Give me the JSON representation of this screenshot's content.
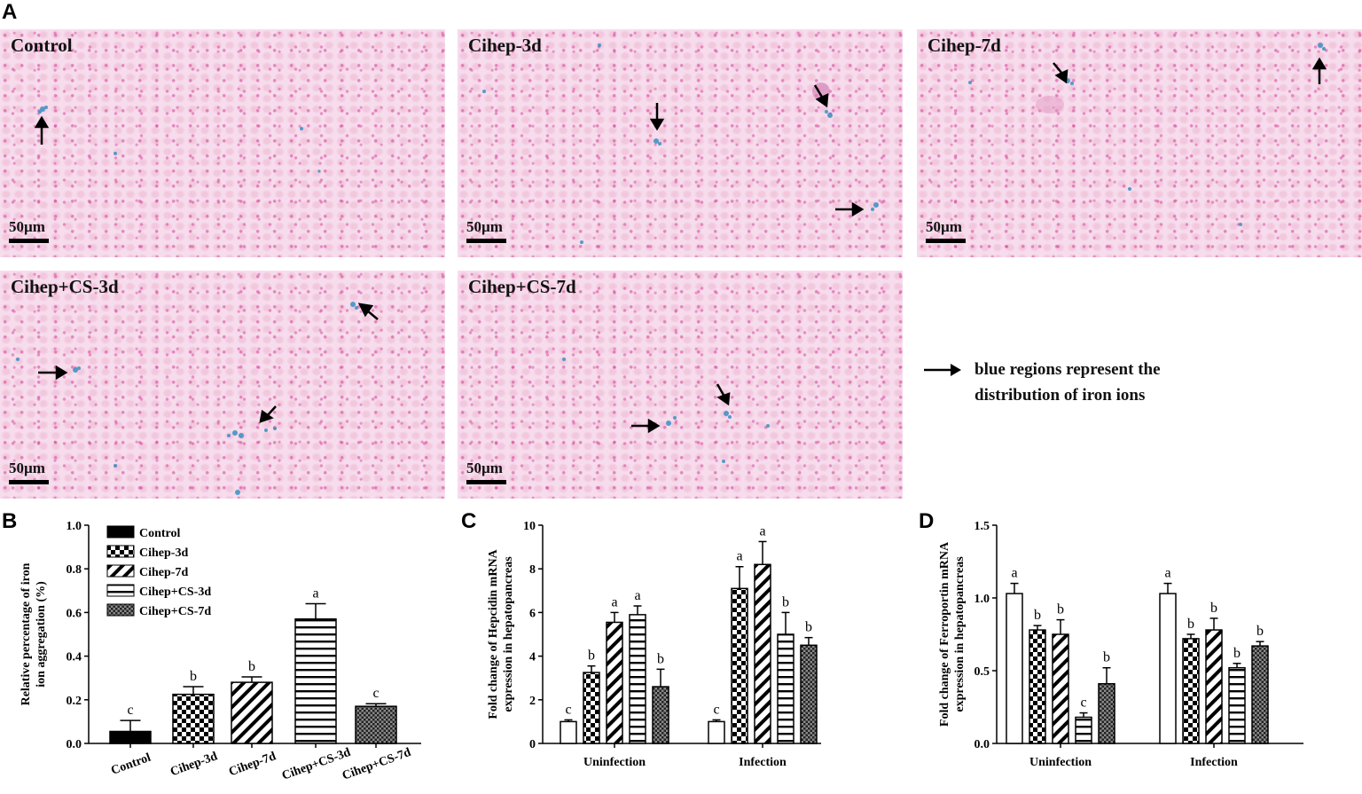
{
  "panel_letters": {
    "a": "A",
    "b": "B",
    "c": "C",
    "d": "D"
  },
  "micrographs": [
    {
      "label": "Control",
      "scale": "50µm",
      "arrows": [
        {
          "dir": "up"
        }
      ]
    },
    {
      "label": "Cihep-3d",
      "scale": "50µm",
      "arrows": [
        {
          "dir": "down"
        },
        {
          "dir": "down-right"
        },
        {
          "dir": "right"
        }
      ]
    },
    {
      "label": "Cihep-7d",
      "scale": "50µm",
      "arrows": [
        {
          "dir": "down-right"
        },
        {
          "dir": "up"
        }
      ]
    },
    {
      "label": "Cihep+CS-3d",
      "scale": "50µm",
      "arrows": [
        {
          "dir": "up-left"
        },
        {
          "dir": "right"
        },
        {
          "dir": "down-left"
        }
      ]
    },
    {
      "label": "Cihep+CS-7d",
      "scale": "50µm",
      "arrows": [
        {
          "dir": "down-right"
        },
        {
          "dir": "right"
        }
      ]
    }
  ],
  "note": {
    "text_line1": "blue regions represent the",
    "text_line2": "distribution of iron ions"
  },
  "colors": {
    "bar_fill": "#ffffff",
    "bar_stroke": "#000000",
    "iron_blue": "#3a8fc4",
    "tissue_pink": "#f6dcec"
  },
  "chart_data": [
    {
      "id": "B",
      "type": "bar",
      "categories": [
        "Control",
        "Cihep-3d",
        "Cihep-7d",
        "Cihep+CS-3d",
        "Cihep+CS-7d"
      ],
      "values": [
        0.055,
        0.225,
        0.28,
        0.57,
        0.17
      ],
      "errors": [
        0.05,
        0.035,
        0.025,
        0.07,
        0.012
      ],
      "letters": [
        "c",
        "b",
        "b",
        "a",
        "c"
      ],
      "patterns": [
        "solid",
        "check",
        "diag",
        "hlines",
        "dense"
      ],
      "legend": [
        "Control",
        "Cihep-3d",
        "Cihep-7d",
        "Cihep+CS-3d",
        "Cihep+CS-7d"
      ],
      "legend_position": "top-left",
      "ylabel_line1": "Relative percentage of iron",
      "ylabel_line2": "ion aggregation (%)",
      "ylim": [
        0,
        1.0
      ],
      "yticks": [
        "0.0",
        "0.2",
        "0.4",
        "0.6",
        "0.8",
        "1.0"
      ]
    },
    {
      "id": "C",
      "type": "bar",
      "groups": [
        "Uninfection",
        "Infection"
      ],
      "series": [
        {
          "name": "Control",
          "pattern": "open",
          "values": [
            1.0,
            1.0
          ],
          "errors": [
            0.08,
            0.08
          ],
          "letters": [
            "c",
            "c"
          ]
        },
        {
          "name": "Cihep-3d",
          "pattern": "check",
          "values": [
            3.25,
            7.1
          ],
          "errors": [
            0.3,
            1.0
          ],
          "letters": [
            "b",
            "a"
          ]
        },
        {
          "name": "Cihep-7d",
          "pattern": "diag",
          "values": [
            5.55,
            8.2
          ],
          "errors": [
            0.45,
            1.05
          ],
          "letters": [
            "a",
            "a"
          ]
        },
        {
          "name": "Cihep+CS-3d",
          "pattern": "hlines",
          "values": [
            5.9,
            5.0
          ],
          "errors": [
            0.4,
            1.0
          ],
          "letters": [
            "a",
            "b"
          ]
        },
        {
          "name": "Cihep+CS-7d",
          "pattern": "dense",
          "values": [
            2.6,
            4.5
          ],
          "errors": [
            0.8,
            0.35
          ],
          "letters": [
            "b",
            "b"
          ]
        }
      ],
      "ylabel_line1": "Fold change of Hepcidin mRNA",
      "ylabel_line2": "expression in hepatopancreas",
      "ylim": [
        0,
        10
      ],
      "yticks": [
        "0",
        "2",
        "4",
        "6",
        "8",
        "10"
      ]
    },
    {
      "id": "D",
      "type": "bar",
      "groups": [
        "Uninfection",
        "Infection"
      ],
      "series": [
        {
          "name": "Control",
          "pattern": "open",
          "values": [
            1.03,
            1.03
          ],
          "errors": [
            0.07,
            0.07
          ],
          "letters": [
            "a",
            "a"
          ]
        },
        {
          "name": "Cihep-3d",
          "pattern": "check",
          "values": [
            0.78,
            0.72
          ],
          "errors": [
            0.03,
            0.03
          ],
          "letters": [
            "b",
            "b"
          ]
        },
        {
          "name": "Cihep-7d",
          "pattern": "diag",
          "values": [
            0.75,
            0.78
          ],
          "errors": [
            0.1,
            0.08
          ],
          "letters": [
            "b",
            "b"
          ]
        },
        {
          "name": "Cihep+CS-3d",
          "pattern": "hlines",
          "values": [
            0.18,
            0.52
          ],
          "errors": [
            0.03,
            0.03
          ],
          "letters": [
            "c",
            "b"
          ]
        },
        {
          "name": "Cihep+CS-7d",
          "pattern": "dense",
          "values": [
            0.41,
            0.67
          ],
          "errors": [
            0.11,
            0.03
          ],
          "letters": [
            "b",
            "b"
          ]
        }
      ],
      "ylabel_line1": "Fold change of Ferroportin mRNA",
      "ylabel_line2": "expression in hepatopancreas",
      "ylim": [
        0,
        1.5
      ],
      "yticks": [
        "0.0",
        "0.5",
        "1.0",
        "1.5"
      ]
    }
  ]
}
